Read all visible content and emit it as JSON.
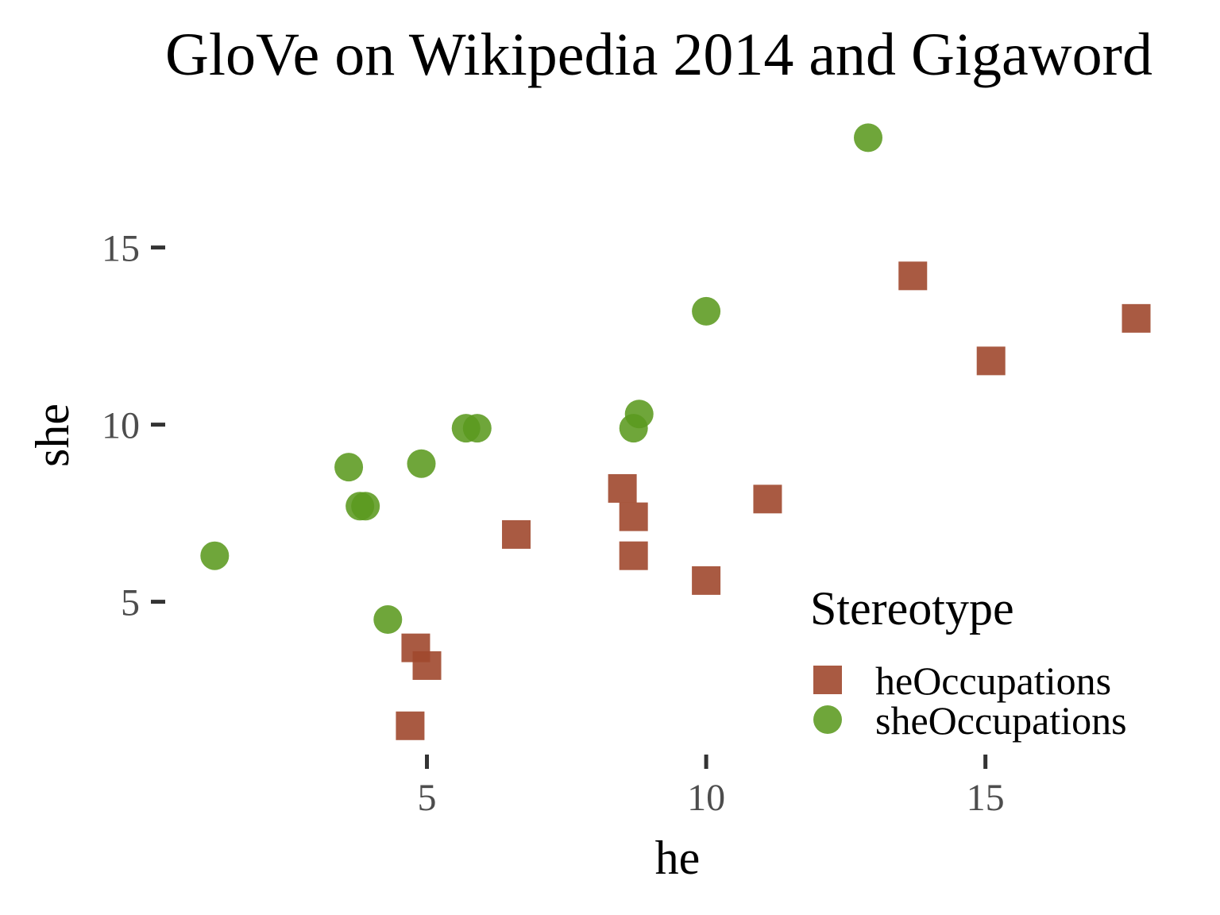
{
  "chart_data": {
    "type": "scatter",
    "title": "GloVe  on Wikipedia 2014 and Gigaword",
    "xlabel": "he",
    "ylabel": "she",
    "xlim": [
      0.2,
      19.2
    ],
    "ylim": [
      0.8,
      18.4
    ],
    "xticks": [
      5,
      10,
      15
    ],
    "yticks": [
      5,
      10,
      15
    ],
    "grid": false,
    "legend": {
      "title": "Stereotype",
      "position": "bottom-right"
    },
    "series": [
      {
        "name": "heOccupations",
        "marker": "square",
        "color": "#a0482d",
        "points": [
          {
            "x": 13.7,
            "y": 14.2
          },
          {
            "x": 17.7,
            "y": 13.0
          },
          {
            "x": 15.1,
            "y": 11.8
          },
          {
            "x": 8.5,
            "y": 8.2
          },
          {
            "x": 11.1,
            "y": 7.9
          },
          {
            "x": 8.7,
            "y": 7.4
          },
          {
            "x": 6.6,
            "y": 6.9
          },
          {
            "x": 8.7,
            "y": 6.3
          },
          {
            "x": 10.0,
            "y": 5.6
          },
          {
            "x": 4.8,
            "y": 3.7
          },
          {
            "x": 5.0,
            "y": 3.2
          },
          {
            "x": 4.7,
            "y": 1.5
          }
        ]
      },
      {
        "name": "sheOccupations",
        "marker": "circle",
        "color": "#5b9a1f",
        "points": [
          {
            "x": 12.9,
            "y": 18.1
          },
          {
            "x": 10.0,
            "y": 13.2
          },
          {
            "x": 8.8,
            "y": 10.3
          },
          {
            "x": 8.7,
            "y": 9.9
          },
          {
            "x": 5.7,
            "y": 9.9
          },
          {
            "x": 5.9,
            "y": 9.9
          },
          {
            "x": 4.9,
            "y": 8.9
          },
          {
            "x": 3.6,
            "y": 8.8
          },
          {
            "x": 3.8,
            "y": 7.7
          },
          {
            "x": 3.9,
            "y": 7.7
          },
          {
            "x": 1.2,
            "y": 6.3
          },
          {
            "x": 4.3,
            "y": 4.5
          }
        ]
      }
    ]
  }
}
